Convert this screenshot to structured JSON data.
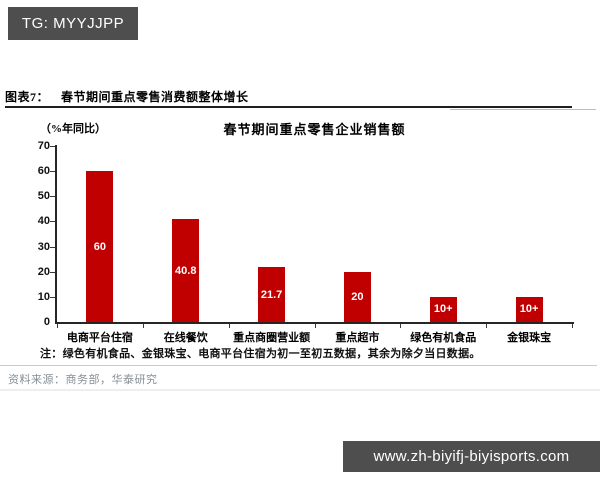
{
  "top_banner": {
    "text": "TG: MYYJJPP"
  },
  "figure": {
    "label": "图表7：",
    "title": "春节期间重点零售消费额整体增长"
  },
  "chart_data": {
    "type": "bar",
    "title": "春节期间重点零售企业销售额",
    "unit_label": "（%年同比）",
    "ylabel": "%年同比",
    "xlabel": "",
    "categories": [
      "电商平台住宿",
      "在线餐饮",
      "重点商圈营业额",
      "重点超市",
      "绿色有机食品",
      "金银珠宝"
    ],
    "values": [
      60,
      40.8,
      21.7,
      20,
      10,
      10
    ],
    "value_labels": [
      "60",
      "40.8",
      "21.7",
      "20",
      "10+",
      "10+"
    ],
    "bar_color": "#c00000",
    "value_label_color": "#ffffff",
    "ylim": [
      0,
      70
    ],
    "yticks": [
      0,
      10,
      20,
      30,
      40,
      50,
      60,
      70
    ],
    "grid": false,
    "legend": null
  },
  "note": "注：绿色有机食品、金银珠宝、电商平台住宿为初一至初五数据，其余为除夕当日数据。",
  "source": "资料来源：商务部，华泰研究",
  "bottom_banner": {
    "text": "www.zh-biyifj-biyisports.com"
  }
}
